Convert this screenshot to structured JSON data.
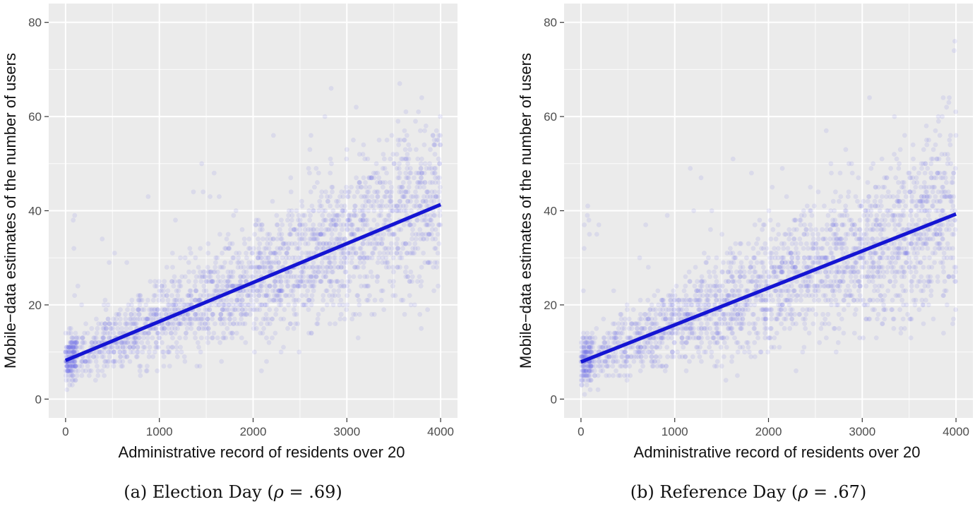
{
  "figures": [
    {
      "id": "a",
      "caption_prefix": "(a) Election Day (",
      "rho_symbol": "ρ",
      "rho_value": " = .69)"
    },
    {
      "id": "b",
      "caption_prefix": "(b) Reference Day (",
      "rho_symbol": "ρ",
      "rho_value": " = .67)"
    }
  ],
  "chart_data": [
    {
      "type": "scatter",
      "title": "",
      "xlabel": "Administrative record of residents over 20",
      "ylabel": "Mobile−data estimates of the number of users",
      "xlim": [
        -180,
        4180
      ],
      "ylim": [
        -4,
        84
      ],
      "x_ticks": [
        0,
        1000,
        2000,
        3000,
        4000
      ],
      "y_ticks": [
        0,
        20,
        40,
        60,
        80
      ],
      "grid": true,
      "point_color": "#6a6ee8",
      "fit_color": "#1414d4",
      "fit_line": {
        "x": [
          0,
          4000
        ],
        "y": [
          8.2,
          41.3
        ]
      },
      "points_description": "approx. 2500 semi-transparent points, positive linear trend, spread widening with x",
      "point_model": {
        "n": 2400,
        "intercept": 8.2,
        "slope": 0.008275,
        "seed": 11
      }
    },
    {
      "type": "scatter",
      "title": "",
      "xlabel": "Administrative record of residents over 20",
      "ylabel": "Mobile−data estimates of the number of users",
      "xlim": [
        -180,
        4180
      ],
      "ylim": [
        -4,
        84
      ],
      "x_ticks": [
        0,
        1000,
        2000,
        3000,
        4000
      ],
      "y_ticks": [
        0,
        20,
        40,
        60,
        80
      ],
      "grid": true,
      "point_color": "#6a6ee8",
      "fit_color": "#1414d4",
      "fit_line": {
        "x": [
          0,
          4000
        ],
        "y": [
          7.9,
          39.3
        ]
      },
      "points_description": "approx. 2500 semi-transparent points, positive linear trend, spread widening with x",
      "point_model": {
        "n": 2400,
        "intercept": 7.9,
        "slope": 0.00785,
        "seed": 29
      }
    }
  ]
}
